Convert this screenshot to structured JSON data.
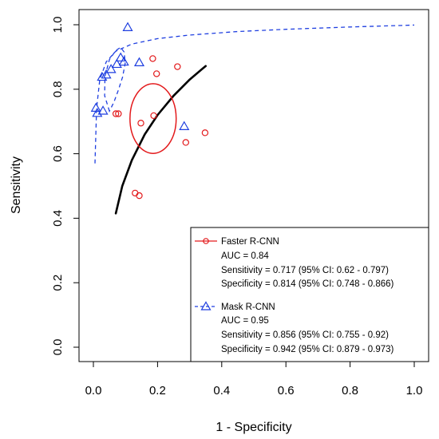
{
  "chart_data": {
    "type": "scatter",
    "xlabel": "1 - Specificity",
    "ylabel": "Sensitivity",
    "xlim": [
      0.0,
      1.0
    ],
    "ylim": [
      0.0,
      1.0
    ],
    "x_ticks": [
      "0.0",
      "0.2",
      "0.4",
      "0.6",
      "0.8",
      "1.0"
    ],
    "y_ticks": [
      "0.0",
      "0.2",
      "0.4",
      "0.6",
      "0.8",
      "1.0"
    ],
    "grid": false,
    "legend_position": "bottom-right",
    "series": [
      {
        "name": "Faster R-CNN",
        "color": "#e31a1c",
        "marker": "circle",
        "points": [
          [
            0.185,
            0.895
          ],
          [
            0.262,
            0.87
          ],
          [
            0.197,
            0.848
          ],
          [
            0.07,
            0.724
          ],
          [
            0.078,
            0.724
          ],
          [
            0.188,
            0.718
          ],
          [
            0.148,
            0.695
          ],
          [
            0.348,
            0.665
          ],
          [
            0.288,
            0.635
          ],
          [
            0.13,
            0.478
          ],
          [
            0.143,
            0.47
          ]
        ],
        "summary_point": [
          0.186,
          0.717
        ],
        "confidence_region": {
          "cx": 0.186,
          "cy": 0.709,
          "rx": 0.072,
          "ry": 0.108
        },
        "sroc_curve": [
          [
            0.07,
            0.415
          ],
          [
            0.09,
            0.5
          ],
          [
            0.12,
            0.58
          ],
          [
            0.16,
            0.66
          ],
          [
            0.2,
            0.72
          ],
          [
            0.25,
            0.78
          ],
          [
            0.3,
            0.83
          ],
          [
            0.35,
            0.872
          ]
        ],
        "legend": {
          "label": "Faster R-CNN",
          "lines": [
            "AUC = 0.84",
            "Sensitivity = 0.717 (95% CI: 0.62 - 0.797)",
            "Specificity = 0.814 (95% CI: 0.748 - 0.866)"
          ]
        }
      },
      {
        "name": "Mask R-CNN",
        "color": "#1f3fe0",
        "marker": "triangle",
        "points": [
          [
            0.107,
            0.992
          ],
          [
            0.085,
            0.898
          ],
          [
            0.095,
            0.885
          ],
          [
            0.143,
            0.883
          ],
          [
            0.073,
            0.878
          ],
          [
            0.055,
            0.862
          ],
          [
            0.04,
            0.845
          ],
          [
            0.027,
            0.838
          ],
          [
            0.008,
            0.742
          ],
          [
            0.03,
            0.733
          ],
          [
            0.012,
            0.726
          ],
          [
            0.283,
            0.685
          ]
        ],
        "summary_point": [
          0.058,
          0.856
        ],
        "sroc_curve": [
          [
            0.005,
            0.57
          ],
          [
            0.01,
            0.74
          ],
          [
            0.02,
            0.83
          ],
          [
            0.04,
            0.885
          ],
          [
            0.07,
            0.918
          ],
          [
            0.12,
            0.94
          ],
          [
            0.2,
            0.957
          ],
          [
            0.3,
            0.968
          ],
          [
            0.45,
            0.979
          ],
          [
            0.6,
            0.986
          ],
          [
            0.8,
            0.993
          ],
          [
            1.0,
            0.999
          ]
        ],
        "confidence_region": [
          [
            0.05,
            0.732
          ],
          [
            0.035,
            0.78
          ],
          [
            0.036,
            0.84
          ],
          [
            0.05,
            0.892
          ],
          [
            0.07,
            0.92
          ],
          [
            0.085,
            0.93
          ],
          [
            0.096,
            0.915
          ],
          [
            0.099,
            0.88
          ],
          [
            0.091,
            0.838
          ],
          [
            0.078,
            0.798
          ],
          [
            0.064,
            0.76
          ],
          [
            0.05,
            0.732
          ]
        ],
        "legend": {
          "label": "Mask R-CNN",
          "lines": [
            "AUC = 0.95",
            "Sensitivity = 0.856 (95% CI: 0.755 - 0.92)",
            "Specificity = 0.942 (95% CI: 0.879 - 0.973)"
          ]
        }
      }
    ]
  }
}
